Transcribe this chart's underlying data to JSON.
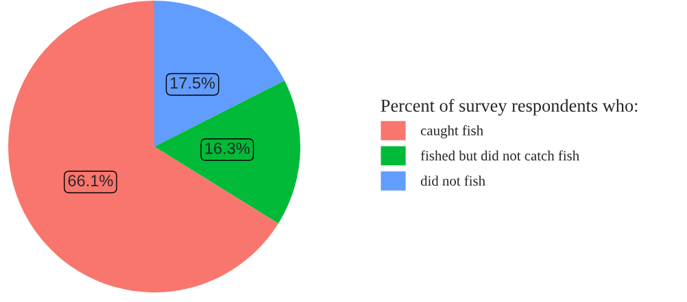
{
  "chart_data": {
    "type": "pie",
    "categories": [
      "caught fish",
      "fished but did not catch fish",
      "did not fish"
    ],
    "values": [
      66.1,
      16.3,
      17.5
    ],
    "colors": [
      "#f8766d",
      "#00ba38",
      "#619cff"
    ],
    "value_labels": [
      "66.1%",
      "16.3%",
      "17.5%"
    ],
    "legend_title": "Percent of survey respondents who:",
    "legend": "right"
  }
}
